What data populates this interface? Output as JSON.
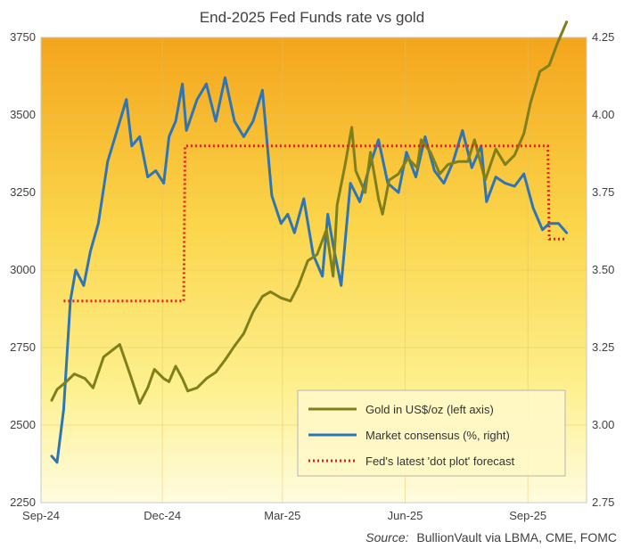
{
  "chart_data": {
    "type": "line",
    "title": "End-2025 Fed Funds rate vs gold",
    "source_label": "Source:",
    "source_text": "BullionVault via LBMA, CME, FOMC",
    "x_ticks": [
      "Sep-24",
      "Dec-24",
      "Mar-25",
      "Jun-25",
      "Sep-25"
    ],
    "x_tick_dates": [
      "2024-09-01",
      "2024-12-01",
      "2025-03-01",
      "2025-06-01",
      "2025-09-01"
    ],
    "x_range": [
      "2024-09-01",
      "2025-10-15"
    ],
    "y_left": {
      "min": 2250,
      "max": 3750,
      "ticks": [
        2250,
        2500,
        2750,
        3000,
        3250,
        3500,
        3750
      ]
    },
    "y_right": {
      "min": 2.75,
      "max": 4.25,
      "ticks": [
        "2.75",
        "3.00",
        "3.25",
        "3.50",
        "3.75",
        "4.00",
        "4.25"
      ]
    },
    "grid": true,
    "legend_position": "bottom-right",
    "series": [
      {
        "name": "Gold in US$/oz (left axis)",
        "axis": "left",
        "color": "#7f7f1c",
        "style": "solid",
        "x": [
          "2024-09-09",
          "2024-09-13",
          "2024-09-20",
          "2024-09-26",
          "2024-10-04",
          "2024-10-10",
          "2024-10-18",
          "2024-10-24",
          "2024-10-30",
          "2024-11-07",
          "2024-11-14",
          "2024-11-20",
          "2024-11-25",
          "2024-12-02",
          "2024-12-06",
          "2024-12-11",
          "2024-12-16",
          "2024-12-20",
          "2024-12-27",
          "2025-01-03",
          "2025-01-10",
          "2025-01-17",
          "2025-01-24",
          "2025-01-31",
          "2025-02-07",
          "2025-02-14",
          "2025-02-20",
          "2025-02-28",
          "2025-03-07",
          "2025-03-13",
          "2025-03-20",
          "2025-03-27",
          "2025-04-03",
          "2025-04-08",
          "2025-04-11",
          "2025-04-17",
          "2025-04-22",
          "2025-04-25",
          "2025-05-02",
          "2025-05-06",
          "2025-05-12",
          "2025-05-15",
          "2025-05-20",
          "2025-05-27",
          "2025-06-03",
          "2025-06-10",
          "2025-06-13",
          "2025-06-20",
          "2025-06-27",
          "2025-07-03",
          "2025-07-11",
          "2025-07-18",
          "2025-07-23",
          "2025-07-31",
          "2025-08-08",
          "2025-08-15",
          "2025-08-22",
          "2025-08-29",
          "2025-09-03",
          "2025-09-10",
          "2025-09-17",
          "2025-09-23",
          "2025-09-26",
          "2025-09-30"
        ],
        "values": [
          2580,
          2615,
          2640,
          2665,
          2650,
          2620,
          2720,
          2740,
          2760,
          2660,
          2570,
          2620,
          2680,
          2650,
          2640,
          2690,
          2650,
          2610,
          2620,
          2650,
          2670,
          2710,
          2755,
          2795,
          2865,
          2915,
          2930,
          2910,
          2900,
          2950,
          3030,
          3050,
          3130,
          2980,
          3210,
          3340,
          3460,
          3320,
          3250,
          3380,
          3230,
          3180,
          3290,
          3310,
          3360,
          3330,
          3420,
          3380,
          3310,
          3340,
          3350,
          3350,
          3420,
          3290,
          3390,
          3340,
          3370,
          3440,
          3540,
          3640,
          3660,
          3730,
          3760,
          3800
        ]
      },
      {
        "name": "Market consensus (%, right)",
        "axis": "right",
        "color": "#2e75b6",
        "style": "solid",
        "x": [
          "2024-09-09",
          "2024-09-13",
          "2024-09-18",
          "2024-09-23",
          "2024-09-27",
          "2024-10-03",
          "2024-10-08",
          "2024-10-14",
          "2024-10-21",
          "2024-10-28",
          "2024-11-04",
          "2024-11-08",
          "2024-11-14",
          "2024-11-20",
          "2024-11-26",
          "2024-12-02",
          "2024-12-06",
          "2024-12-11",
          "2024-12-16",
          "2024-12-19",
          "2024-12-27",
          "2025-01-03",
          "2025-01-10",
          "2025-01-17",
          "2025-01-24",
          "2025-01-31",
          "2025-02-07",
          "2025-02-14",
          "2025-02-21",
          "2025-02-28",
          "2025-03-05",
          "2025-03-10",
          "2025-03-17",
          "2025-03-24",
          "2025-03-31",
          "2025-04-04",
          "2025-04-08",
          "2025-04-14",
          "2025-04-21",
          "2025-04-28",
          "2025-05-05",
          "2025-05-12",
          "2025-05-19",
          "2025-05-27",
          "2025-06-02",
          "2025-06-09",
          "2025-06-16",
          "2025-06-23",
          "2025-06-30",
          "2025-07-07",
          "2025-07-14",
          "2025-07-21",
          "2025-07-28",
          "2025-08-01",
          "2025-08-08",
          "2025-08-15",
          "2025-08-22",
          "2025-08-29",
          "2025-09-05",
          "2025-09-12",
          "2025-09-17",
          "2025-09-24",
          "2025-09-30"
        ],
        "values": [
          2.9,
          2.88,
          3.05,
          3.4,
          3.5,
          3.45,
          3.56,
          3.65,
          3.85,
          3.95,
          4.05,
          3.9,
          3.93,
          3.8,
          3.82,
          3.78,
          3.93,
          3.98,
          4.1,
          3.95,
          4.05,
          4.1,
          3.98,
          4.12,
          3.98,
          3.93,
          3.98,
          4.08,
          3.74,
          3.65,
          3.68,
          3.62,
          3.73,
          3.55,
          3.48,
          3.68,
          3.58,
          3.45,
          3.78,
          3.72,
          3.83,
          3.92,
          3.78,
          3.75,
          3.88,
          3.8,
          3.93,
          3.82,
          3.78,
          3.85,
          3.95,
          3.83,
          3.9,
          3.72,
          3.8,
          3.78,
          3.77,
          3.81,
          3.7,
          3.63,
          3.65,
          3.65,
          3.62
        ]
      },
      {
        "name": "Fed's latest 'dot plot' forecast",
        "axis": "right",
        "color": "#e0201c",
        "style": "dotted",
        "x": [
          "2024-09-18",
          "2024-12-17",
          "2024-12-18",
          "2025-09-16",
          "2025-09-17",
          "2025-09-30"
        ],
        "values": [
          3.4,
          3.4,
          3.9,
          3.9,
          3.6,
          3.6
        ]
      }
    ]
  }
}
